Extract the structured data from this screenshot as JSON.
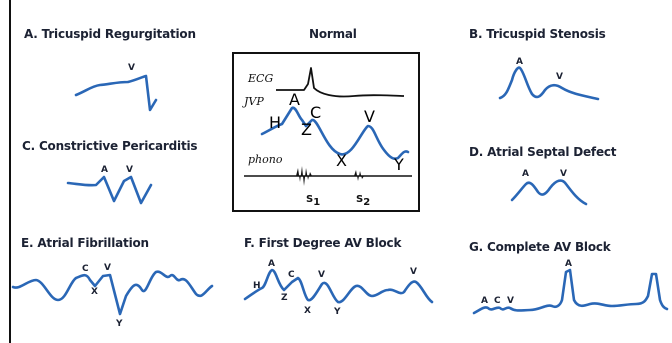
{
  "panels": {
    "a": {
      "title": "A. Tricuspid Regurgitation",
      "points": [
        "V"
      ]
    },
    "b": {
      "title": "B. Tricuspid Stenosis",
      "points": [
        "A",
        "V"
      ]
    },
    "c": {
      "title": "C. Constrictive Pericarditis",
      "points": [
        "A",
        "V"
      ]
    },
    "d": {
      "title": "D. Atrial Septal Defect",
      "points": [
        "A",
        "V"
      ]
    },
    "e": {
      "title": "E. Atrial Fibrillation",
      "points": [
        "C",
        "V",
        "X",
        "Y"
      ]
    },
    "f": {
      "title": "F. First Degree AV Block",
      "points": [
        "H",
        "A",
        "Z",
        "C",
        "X",
        "V",
        "Y",
        "V"
      ]
    },
    "g": {
      "title": "G. Complete AV Block",
      "points": [
        "A",
        "C",
        "V",
        "A"
      ]
    }
  },
  "normal": {
    "title": "Normal",
    "ecg_label": "ECG",
    "jvp_label": "JVP",
    "phono_label": "phono",
    "jvp_points": [
      "H",
      "A",
      "C",
      "Z",
      "V",
      "X",
      "Y"
    ],
    "s1": "S",
    "s1_sub": "1",
    "s2": "S",
    "s2_sub": "2"
  },
  "colors": {
    "trace": "#2a67b6",
    "text": "#1c2233",
    "frame": "#111111"
  }
}
